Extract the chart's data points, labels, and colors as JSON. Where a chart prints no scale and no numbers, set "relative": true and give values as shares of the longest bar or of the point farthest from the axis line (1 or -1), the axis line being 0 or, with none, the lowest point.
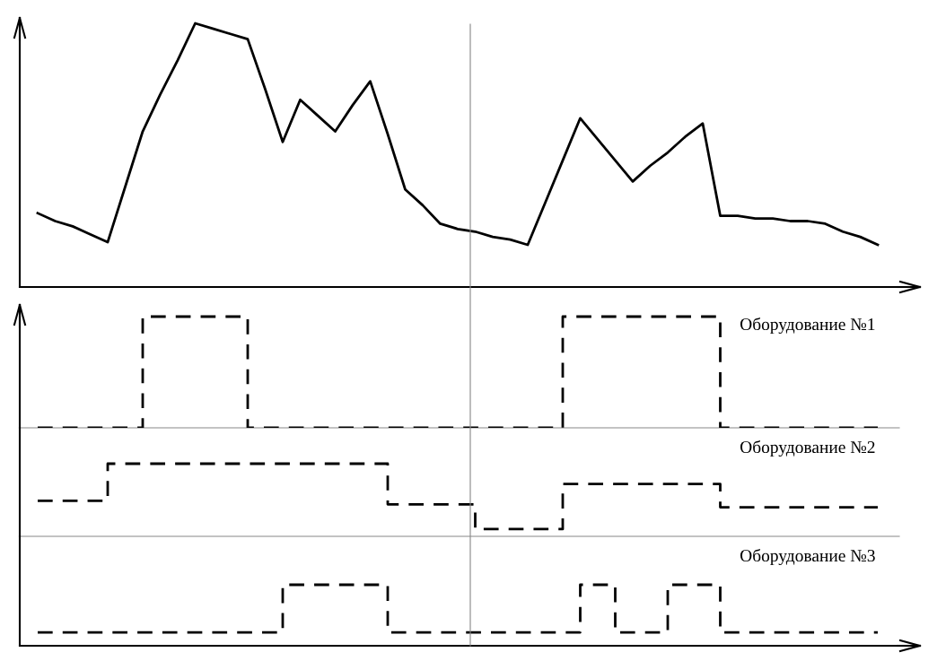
{
  "chart_data": [
    {
      "type": "line",
      "relative": true,
      "marker": "none",
      "line_style": "solid",
      "categories": [
        null,
        null,
        null,
        null,
        null,
        null,
        null,
        null,
        null,
        null,
        null,
        null,
        null,
        null,
        null,
        null,
        null,
        null,
        null,
        null,
        null,
        null,
        null,
        null,
        null,
        null,
        null,
        null,
        null,
        null,
        null,
        null,
        null,
        null,
        null,
        null,
        null,
        null,
        null,
        null,
        null,
        null,
        null,
        null,
        null,
        null,
        null,
        null,
        null
      ],
      "series": [
        {
          "color": "#000000",
          "values": [
            0.28,
            0.25,
            0.23,
            0.2,
            0.17,
            0.38,
            0.59,
            0.73,
            0.86,
            1.0,
            0.98,
            0.96,
            0.94,
            0.75,
            0.55,
            0.71,
            0.65,
            0.59,
            0.69,
            0.78,
            0.58,
            0.37,
            0.31,
            0.24,
            0.22,
            0.21,
            0.19,
            0.18,
            0.16,
            0.32,
            0.48,
            0.64,
            0.56,
            0.48,
            0.4,
            0.46,
            0.51,
            0.57,
            0.62,
            0.27,
            0.27,
            0.26,
            0.26,
            0.25,
            0.25,
            0.24,
            0.21,
            0.19,
            0.16
          ]
        }
      ]
    },
    {
      "type": "step",
      "relative": true,
      "marker": "none",
      "line_style": "dashed",
      "categories": [
        null,
        null,
        null,
        null,
        null,
        null,
        null,
        null,
        null,
        null,
        null,
        null,
        null,
        null,
        null,
        null,
        null,
        null,
        null,
        null,
        null,
        null,
        null,
        null,
        null,
        null,
        null,
        null,
        null,
        null,
        null,
        null,
        null,
        null,
        null,
        null,
        null,
        null,
        null,
        null,
        null,
        null,
        null,
        null,
        null,
        null,
        null,
        null,
        null
      ],
      "series": [
        {
          "name": "Оборудование №1",
          "color": "#000000",
          "values": [
            0,
            0,
            0,
            0,
            0,
            0,
            1,
            1,
            1,
            1,
            1,
            1,
            0,
            0,
            0,
            0,
            0,
            0,
            0,
            0,
            0,
            0,
            0,
            0,
            0,
            0,
            0,
            0,
            0,
            0,
            1,
            1,
            1,
            1,
            1,
            1,
            1,
            1,
            1,
            0,
            0,
            0,
            0,
            0,
            0,
            0,
            0,
            0,
            0
          ]
        }
      ]
    },
    {
      "type": "step",
      "relative": true,
      "marker": "none",
      "line_style": "dashed",
      "categories": [
        null,
        null,
        null,
        null,
        null,
        null,
        null,
        null,
        null,
        null,
        null,
        null,
        null,
        null,
        null,
        null,
        null,
        null,
        null,
        null,
        null,
        null,
        null,
        null,
        null,
        null,
        null,
        null,
        null,
        null,
        null,
        null,
        null,
        null,
        null,
        null,
        null,
        null,
        null,
        null,
        null,
        null,
        null,
        null,
        null,
        null,
        null,
        null,
        null
      ],
      "series": [
        {
          "name": "Оборудование №2",
          "color": "#000000",
          "values": [
            0.49,
            0.49,
            0.49,
            0.49,
            1,
            1,
            1,
            1,
            1,
            1,
            1,
            1,
            1,
            1,
            1,
            1,
            1,
            1,
            1,
            1,
            0.44,
            0.44,
            0.44,
            0.44,
            0.44,
            0.1,
            0.1,
            0.1,
            0.1,
            0.1,
            0.72,
            0.72,
            0.72,
            0.72,
            0.72,
            0.72,
            0.72,
            0.72,
            0.72,
            0.4,
            0.4,
            0.4,
            0.4,
            0.4,
            0.4,
            0.4,
            0.4,
            0.4,
            0.4
          ]
        }
      ]
    },
    {
      "type": "step",
      "relative": true,
      "marker": "none",
      "line_style": "dashed",
      "categories": [
        null,
        null,
        null,
        null,
        null,
        null,
        null,
        null,
        null,
        null,
        null,
        null,
        null,
        null,
        null,
        null,
        null,
        null,
        null,
        null,
        null,
        null,
        null,
        null,
        null,
        null,
        null,
        null,
        null,
        null,
        null,
        null,
        null,
        null,
        null,
        null,
        null,
        null,
        null,
        null,
        null,
        null,
        null,
        null,
        null,
        null,
        null,
        null,
        null
      ],
      "series": [
        {
          "name": "Оборудование №3",
          "color": "#000000",
          "values": [
            0.22,
            0.22,
            0.22,
            0.22,
            0.22,
            0.22,
            0.22,
            0.22,
            0.22,
            0.22,
            0.22,
            0.22,
            0.22,
            0.22,
            1,
            1,
            1,
            1,
            1,
            1,
            0.22,
            0.22,
            0.22,
            0.22,
            0.22,
            0.22,
            0.22,
            0.22,
            0.22,
            0.22,
            0.22,
            1,
            1,
            0.22,
            0.22,
            0.22,
            1,
            1,
            1,
            0.22,
            0.22,
            0.22,
            0.22,
            0.22,
            0.22,
            0.22,
            0.22,
            0.22,
            0.22
          ]
        }
      ]
    }
  ]
}
